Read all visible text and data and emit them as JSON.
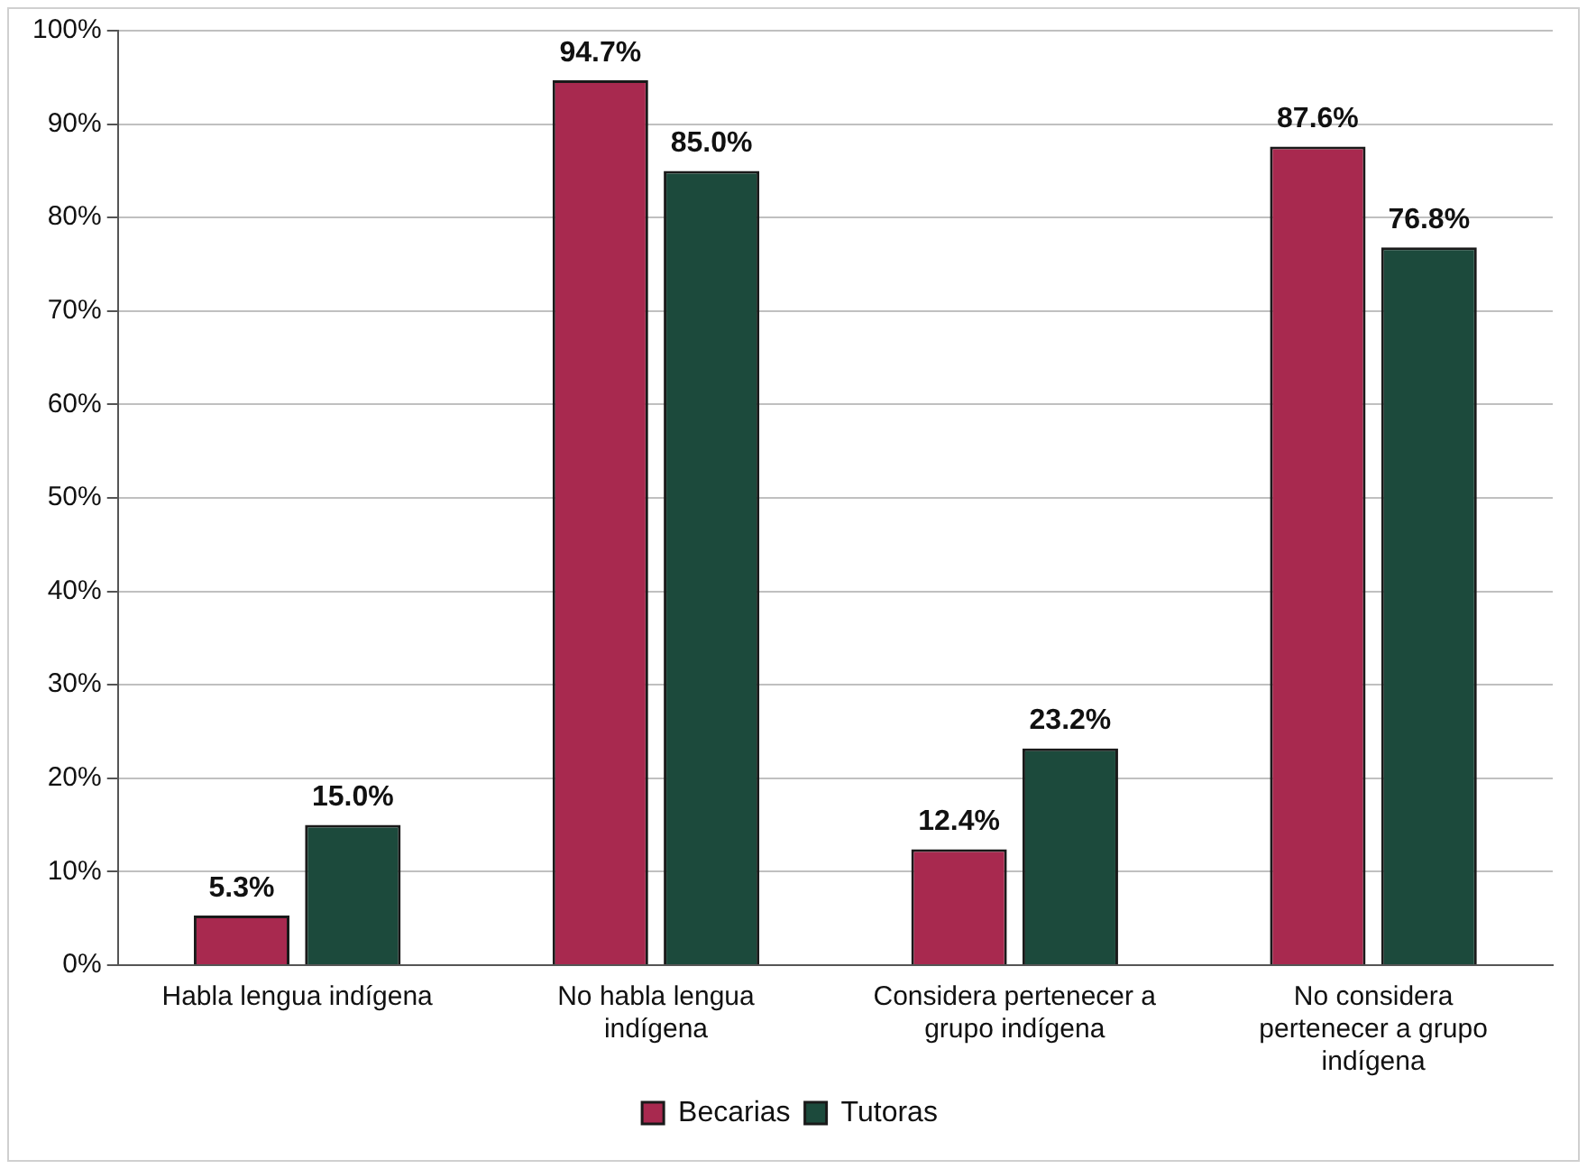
{
  "chart_data": {
    "type": "bar",
    "categories": [
      "Habla lengua indígena",
      "No habla lengua indígena",
      "Considera pertenecer a grupo indígena",
      "No considera pertenecer a grupo indígena"
    ],
    "series": [
      {
        "name": "Becarias",
        "color": "#a8294f",
        "values": [
          5.3,
          94.7,
          12.4,
          87.6
        ],
        "value_labels": [
          "5.3%",
          "94.7%",
          "12.4%",
          "87.6%"
        ]
      },
      {
        "name": "Tutoras",
        "color": "#1c4a3c",
        "values": [
          15.0,
          85.0,
          23.2,
          76.8
        ],
        "value_labels": [
          "15.0%",
          "85.0%",
          "23.2%",
          "76.8%"
        ]
      }
    ],
    "ylim": [
      0,
      100
    ],
    "yticks": [
      {
        "value": 0,
        "label": "0%"
      },
      {
        "value": 10,
        "label": "10%"
      },
      {
        "value": 20,
        "label": "20%"
      },
      {
        "value": 30,
        "label": "30%"
      },
      {
        "value": 40,
        "label": "40%"
      },
      {
        "value": 50,
        "label": "50%"
      },
      {
        "value": 60,
        "label": "60%"
      },
      {
        "value": 70,
        "label": "70%"
      },
      {
        "value": 80,
        "label": "80%"
      },
      {
        "value": 90,
        "label": "90%"
      },
      {
        "value": 100,
        "label": "100%"
      }
    ],
    "grid": "y",
    "legend": "bottom"
  }
}
